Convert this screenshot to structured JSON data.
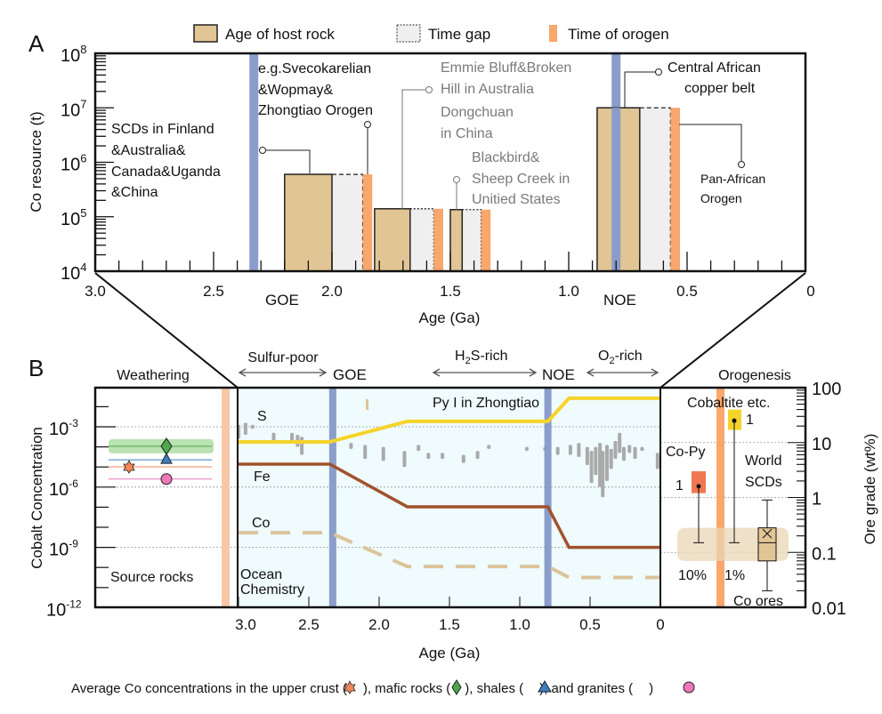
{
  "panel_labels": {
    "a": "A",
    "b": "B"
  },
  "legend": {
    "host_rock": "Age of host rock",
    "time_gap": "Time gap",
    "orogen": "Time of orogen"
  },
  "colors": {
    "host_rock": "#e2c594",
    "time_gap": "#efefef",
    "orogen": "#f9a76c",
    "event_bar": "#8a9dcb",
    "ocean_bg": "#effbfd",
    "s_line": "#f5d42a",
    "fe_line": "#a0522d",
    "co_line": "#dcc49a",
    "scatter": "#aaaaaa"
  },
  "chart_data": [
    {
      "type": "bar",
      "panel": "A",
      "xlabel": "Age (Ga)",
      "ylabel": "Co resource (t)",
      "x_reversed": true,
      "xlim": [
        3.0,
        0
      ],
      "ylim_log10": [
        4,
        8
      ],
      "x_ticks": [
        "3.0",
        "2.5",
        "2.0",
        "1.5",
        "1.0",
        "0.5",
        "0"
      ],
      "y_ticks": [
        {
          "base": "10",
          "exp": "4"
        },
        {
          "base": "10",
          "exp": "5"
        },
        {
          "base": "10",
          "exp": "6"
        },
        {
          "base": "10",
          "exp": "7"
        },
        {
          "base": "10",
          "exp": "8"
        }
      ],
      "events": [
        {
          "name": "GOE",
          "age": 2.33
        },
        {
          "name": "NOE",
          "age": 0.8
        }
      ],
      "deposits": [
        {
          "host_rock": [
            2.2,
            2.0
          ],
          "time_gap": [
            2.0,
            1.87
          ],
          "orogen": [
            1.87,
            1.83
          ],
          "resource_t": 600000
        },
        {
          "host_rock": [
            1.82,
            1.67
          ],
          "time_gap": [
            1.67,
            1.57
          ],
          "orogen": [
            1.57,
            1.53
          ],
          "resource_t": 140000
        },
        {
          "host_rock": [
            1.5,
            1.45
          ],
          "time_gap": [
            1.45,
            1.37
          ],
          "orogen": [
            1.37,
            1.33
          ],
          "resource_t": 135000
        },
        {
          "host_rock": [
            0.88,
            0.7
          ],
          "time_gap": [
            0.7,
            0.57
          ],
          "orogen": [
            0.57,
            0.53
          ],
          "resource_t": 10000000
        }
      ],
      "annotations": {
        "scds": [
          "SCDs in Finland",
          "&Australia&",
          "Canada&Uganda",
          "&China"
        ],
        "svecokarelian": [
          "e.g.Svecokarelian",
          "&Wopmay&",
          "Zhongtiao Orogen"
        ],
        "emmie": [
          "Emmie Bluff&Broken",
          "Hill in Australia"
        ],
        "dongchuan": [
          "Dongchuan",
          "in China"
        ],
        "blackbird": [
          "Blackbird&",
          "Sheep Creek in",
          "Unitied States"
        ],
        "central_african": [
          "Central African",
          "copper belt"
        ],
        "pan_african": [
          "Pan-African",
          "Orogen"
        ]
      }
    },
    {
      "type": "line",
      "panel": "B",
      "xlabel": "Age (Ga)",
      "ylabel": "Cobalt Concentration",
      "y2label": "Ore grade (wt%)",
      "x_reversed": true,
      "xlim": [
        3.0,
        0
      ],
      "x_ticks": [
        "3.0",
        "2.5",
        "2.0",
        "1.5",
        "1.0",
        "0.5",
        "0"
      ],
      "y_ticks": [
        {
          "base": "10",
          "exp": "-3"
        },
        {
          "base": "10",
          "exp": "-6"
        },
        {
          "base": "10",
          "exp": "-9"
        },
        {
          "base": "10",
          "exp": "-12"
        }
      ],
      "y2_ticks": [
        "100",
        "10",
        "1",
        "0.1",
        "0.01"
      ],
      "events": [
        {
          "name": "GOE",
          "age": 2.33
        },
        {
          "name": "NOE",
          "age": 0.8
        }
      ],
      "series": [
        {
          "name": "S",
          "points": [
            [
              3.0,
              -3.75
            ],
            [
              2.35,
              -3.75
            ],
            [
              1.8,
              -2.73
            ],
            [
              0.8,
              -2.73
            ],
            [
              0.65,
              -1.58
            ],
            [
              0,
              -1.58
            ]
          ]
        },
        {
          "name": "Fe",
          "points": [
            [
              3.0,
              -4.86
            ],
            [
              2.35,
              -4.86
            ],
            [
              1.8,
              -6.98
            ],
            [
              0.8,
              -6.98
            ],
            [
              0.65,
              -9.0
            ],
            [
              0,
              -9.0
            ]
          ]
        },
        {
          "name": "Co",
          "points": [
            [
              3.0,
              -8.27
            ],
            [
              2.35,
              -8.27
            ],
            [
              1.8,
              -9.95
            ],
            [
              0.8,
              -9.95
            ],
            [
              0.65,
              -10.5
            ],
            [
              0,
              -10.5
            ]
          ]
        }
      ],
      "py_scatter_log_ranges": [
        [
          3.0,
          -2.9,
          -3.6
        ],
        [
          2.95,
          -2.8,
          -3.4
        ],
        [
          2.9,
          -2.9,
          -3.1
        ],
        [
          2.75,
          -3.3,
          -3.8
        ],
        [
          2.62,
          -3.3,
          -3.7
        ],
        [
          2.58,
          -3.4,
          -4.0
        ],
        [
          2.55,
          -3.5,
          -4.4
        ],
        [
          2.2,
          -3.8,
          -4.1
        ],
        [
          2.1,
          -3.9,
          -4.6
        ],
        [
          1.97,
          -4.0,
          -4.7
        ],
        [
          1.82,
          -4.2,
          -5.0
        ],
        [
          1.72,
          -3.9,
          -4.2
        ],
        [
          1.65,
          -4.3,
          -4.6
        ],
        [
          1.55,
          -4.3,
          -4.6
        ],
        [
          1.4,
          -4.4,
          -4.8
        ],
        [
          1.3,
          -4.2,
          -4.6
        ],
        [
          1.22,
          -3.9,
          -4.1
        ],
        [
          0.95,
          -4.0,
          -4.2
        ],
        [
          0.82,
          -4.0,
          -4.2
        ],
        [
          0.73,
          -4.0,
          -4.4
        ],
        [
          0.64,
          -3.9,
          -4.4
        ],
        [
          0.58,
          -3.8,
          -4.5
        ],
        [
          0.52,
          -4.0,
          -4.9
        ],
        [
          0.49,
          -4.2,
          -5.8
        ],
        [
          0.46,
          -4.0,
          -5.4
        ],
        [
          0.43,
          -3.8,
          -6.0
        ],
        [
          0.41,
          -4.2,
          -6.5
        ],
        [
          0.38,
          -3.9,
          -5.7
        ],
        [
          0.35,
          -4.1,
          -5.1
        ],
        [
          0.32,
          -3.7,
          -4.6
        ],
        [
          0.29,
          -3.3,
          -4.3
        ],
        [
          0.26,
          -4.0,
          -4.7
        ],
        [
          0.22,
          -3.9,
          -4.3
        ],
        [
          0.18,
          -4.0,
          -4.6
        ],
        [
          0.13,
          -4.0,
          -4.2
        ],
        [
          0.02,
          -4.3,
          -5.1
        ]
      ],
      "source_rocks": [
        {
          "name": "mafic rocks",
          "marker": "diamond",
          "color": "#4caa4c",
          "log10": -3.97
        },
        {
          "name": "shales",
          "marker": "triangle",
          "color": "#3a7fc2",
          "log10": -4.64
        },
        {
          "name": "upper crust",
          "marker": "star",
          "color": "#f3875a",
          "log10": -4.99
        },
        {
          "name": "granites",
          "marker": "circle",
          "color": "#ee77b8",
          "log10": -5.6
        }
      ],
      "ore_grades": {
        "co_py": {
          "low": 1.2,
          "high": 3.0,
          "point": 1.6,
          "whisker_low": 0.15,
          "count": "1",
          "pct": "10%"
        },
        "cobaltite": {
          "low": 17,
          "high": 40,
          "point": 25,
          "whisker_low": 0.15,
          "count": "1",
          "pct": "1%"
        },
        "world_scds": {
          "q1": 0.07,
          "median": 0.15,
          "q3": 0.28,
          "mean": 0.22,
          "min": 0.02,
          "max": 0.9
        }
      },
      "labels": {
        "weathering": "Weathering",
        "sulfur_poor": "Sulfur-poor",
        "h2s_rich_h": "H",
        "h2s_rich_sub": "2",
        "h2s_rich_rest": "S-rich",
        "o2_rich_o": "O",
        "o2_rich_sub": "2",
        "o2_rich_rest": "-rich",
        "orogenesis": "Orogenesis",
        "py_zhongtiao": "Py I in Zhongtiao",
        "s": "S",
        "fe": "Fe",
        "co": "Co",
        "ocean_chemistry": [
          "Ocean",
          "Chemistry"
        ],
        "source_rocks": "Source rocks",
        "cobaltite": "Cobaltite etc.",
        "co_py": "Co-Py",
        "world_scds": [
          "World",
          "SCDs"
        ],
        "co_ores": "Co ores"
      }
    }
  ],
  "caption": {
    "p1": "Average Co concentrations in the upper crust (",
    "p2": "), mafic rocks (",
    "p3": "), shales (",
    "p4": "), and granites (",
    "p5": ")"
  }
}
